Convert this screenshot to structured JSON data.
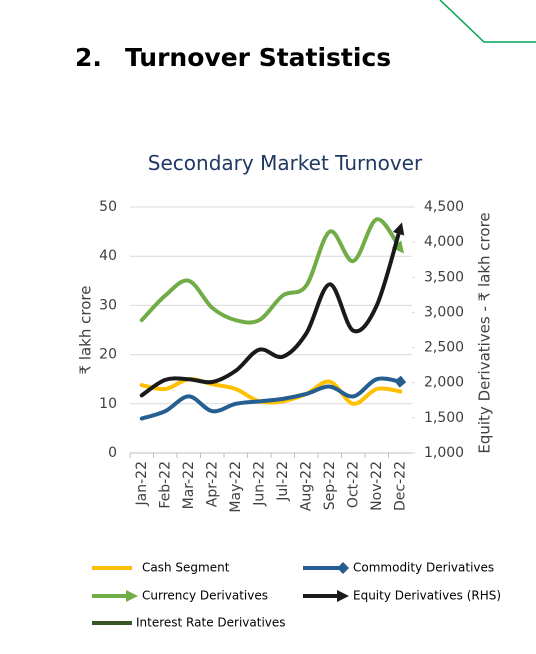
{
  "heading": {
    "number": "2.",
    "title": "Turnover Statistics"
  },
  "chart_data": {
    "type": "line",
    "title": "Secondary Market Turnover",
    "y_label": "₹ lakh crore",
    "y2_label": "Equity Derivatives - ₹ lakh crore",
    "categories": [
      "Jan-22",
      "Feb-22",
      "Mar-22",
      "Apr-22",
      "May-22",
      "Jun-22",
      "Jul-22",
      "Aug-22",
      "Sep-22",
      "Oct-22",
      "Nov-22",
      "Dec-22"
    ],
    "ylim": [
      0,
      50
    ],
    "yticks": [
      0,
      10,
      20,
      30,
      40,
      50
    ],
    "y2lim": [
      1000,
      4500
    ],
    "y2ticks": [
      {
        "value": 1000,
        "label": "1,000"
      },
      {
        "value": 1500,
        "label": "1,500"
      },
      {
        "value": 2000,
        "label": "2,000"
      },
      {
        "value": 2500,
        "label": "2,500"
      },
      {
        "value": 3000,
        "label": "3,000"
      },
      {
        "value": 3500,
        "label": "3,500"
      },
      {
        "value": 4000,
        "label": "4,000"
      },
      {
        "value": 4500,
        "label": "4,500"
      }
    ],
    "grid": true,
    "series": [
      {
        "name": "Cash Segment",
        "color": "#ffc000",
        "values": [
          13.8,
          13,
          15,
          14,
          13,
          10.5,
          10.5,
          12,
          14.5,
          10,
          13,
          12.5
        ]
      },
      {
        "name": "Commodity Derivatives",
        "color": "#255e91",
        "values": [
          7,
          8.5,
          11.5,
          8.5,
          10,
          10.5,
          11,
          12,
          13.5,
          11.5,
          15,
          14.5
        ]
      },
      {
        "name": "Currency Derivatives",
        "color": "#70ad47",
        "values": [
          27,
          32,
          35,
          29.5,
          27,
          27,
          32,
          34,
          45,
          39,
          47.5,
          41.5
        ]
      },
      {
        "name": "Equity Derivatives (RHS)",
        "color": "#1a1a1a",
        "axis": "y2",
        "values": [
          1820,
          2040,
          2050,
          2010,
          2170,
          2470,
          2370,
          2700,
          3400,
          2740,
          3100,
          4200
        ]
      },
      {
        "name": "Interest Rate Derivatives",
        "color": "#375623",
        "values": [
          null,
          null,
          null,
          null,
          null,
          null,
          null,
          null,
          null,
          null,
          null,
          null
        ]
      }
    ]
  }
}
